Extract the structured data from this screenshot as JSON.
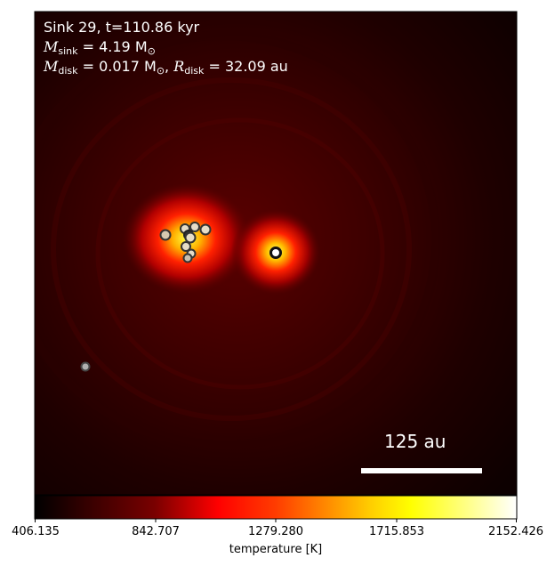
{
  "annotation": {
    "sink_line": "Sink 29, t=110.86 kyr",
    "msink_symbol": "M",
    "msink_sub": "sink",
    "msink_value": " = 4.19 M",
    "msink_sun": "⊙",
    "mdisk_symbol": "M",
    "mdisk_sub": "disk",
    "mdisk_value": " = 0.017 M",
    "mdisk_sun": "⊙",
    "rdisk_symbol": "R",
    "rdisk_sub": "disk",
    "rdisk_value": " = 32.09 au"
  },
  "scalebar": {
    "label": "125 au"
  },
  "colorbar": {
    "label": "temperature [K]",
    "ticks": [
      "406.135",
      "842.707",
      "1279.280",
      "1715.853",
      "2152.426"
    ],
    "colormap": "hot",
    "colors": [
      "#000000",
      "#7a0000",
      "#ff0000",
      "#ffff00",
      "#ffffff"
    ]
  },
  "colors": {
    "frame_bg": "#120000",
    "hot_core": "#ffff66",
    "sink_fill_light": "#e6ddc8",
    "sink_fill_gray": "#b0b0b0",
    "sink_stroke": "#333333",
    "scalebar": "#ffffff"
  }
}
